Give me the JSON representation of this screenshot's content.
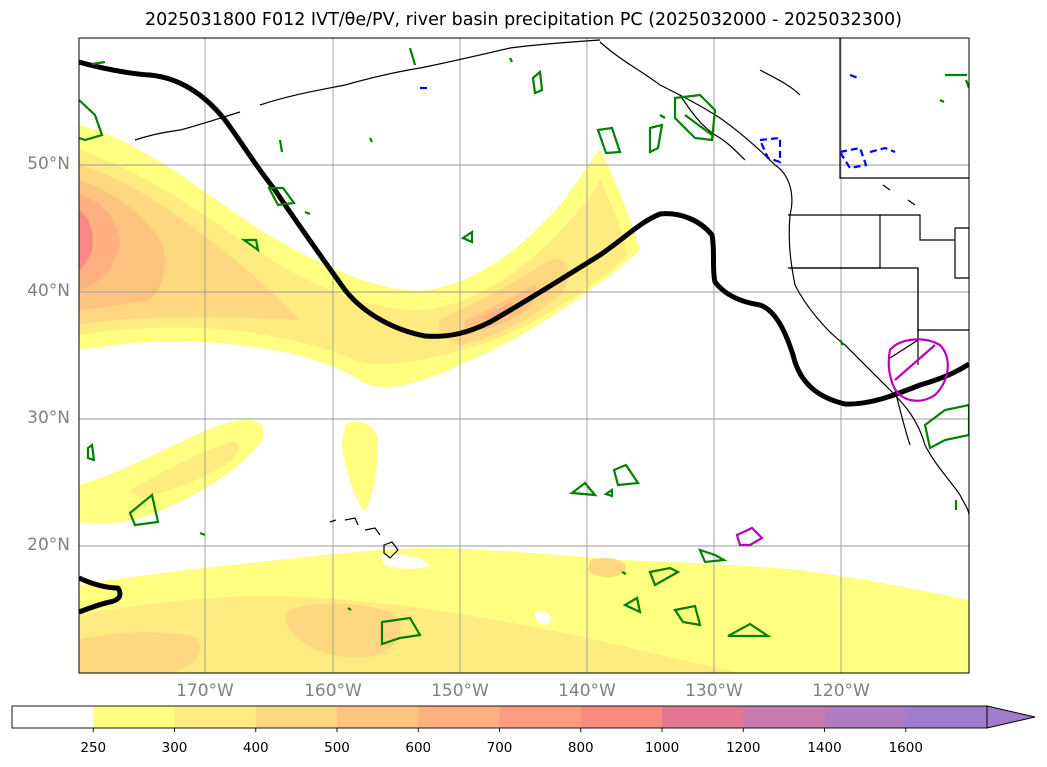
{
  "title": "2025031800 F012 IVT/θe/PV, river basin precipitation PC (2025032000 - 2025032300)",
  "lat_labels": [
    "50°N",
    "40°N",
    "30°N",
    "20°N"
  ],
  "lon_labels": [
    "170°W",
    "160°W",
    "150°W",
    "140°W",
    "130°W",
    "120°W"
  ],
  "colorbar": {
    "levels": [
      "250",
      "300",
      "400",
      "500",
      "600",
      "700",
      "800",
      "1000",
      "1200",
      "1400",
      "1600"
    ],
    "colors": [
      "#ffffff",
      "#ffff80",
      "#ffeb80",
      "#ffd780",
      "#ffc380",
      "#ffaf80",
      "#ff9c80",
      "#f88880",
      "#e47694",
      "#c87ab0",
      "#b07cc0",
      "#a07dcc"
    ],
    "extend": "max"
  },
  "colors": {
    "theta_contour": "#000000",
    "pv_positive": "#008000",
    "pv_negative": "#0000ff",
    "precip": "#bb00bb",
    "grid": "#999999",
    "coast": "#000000"
  }
}
